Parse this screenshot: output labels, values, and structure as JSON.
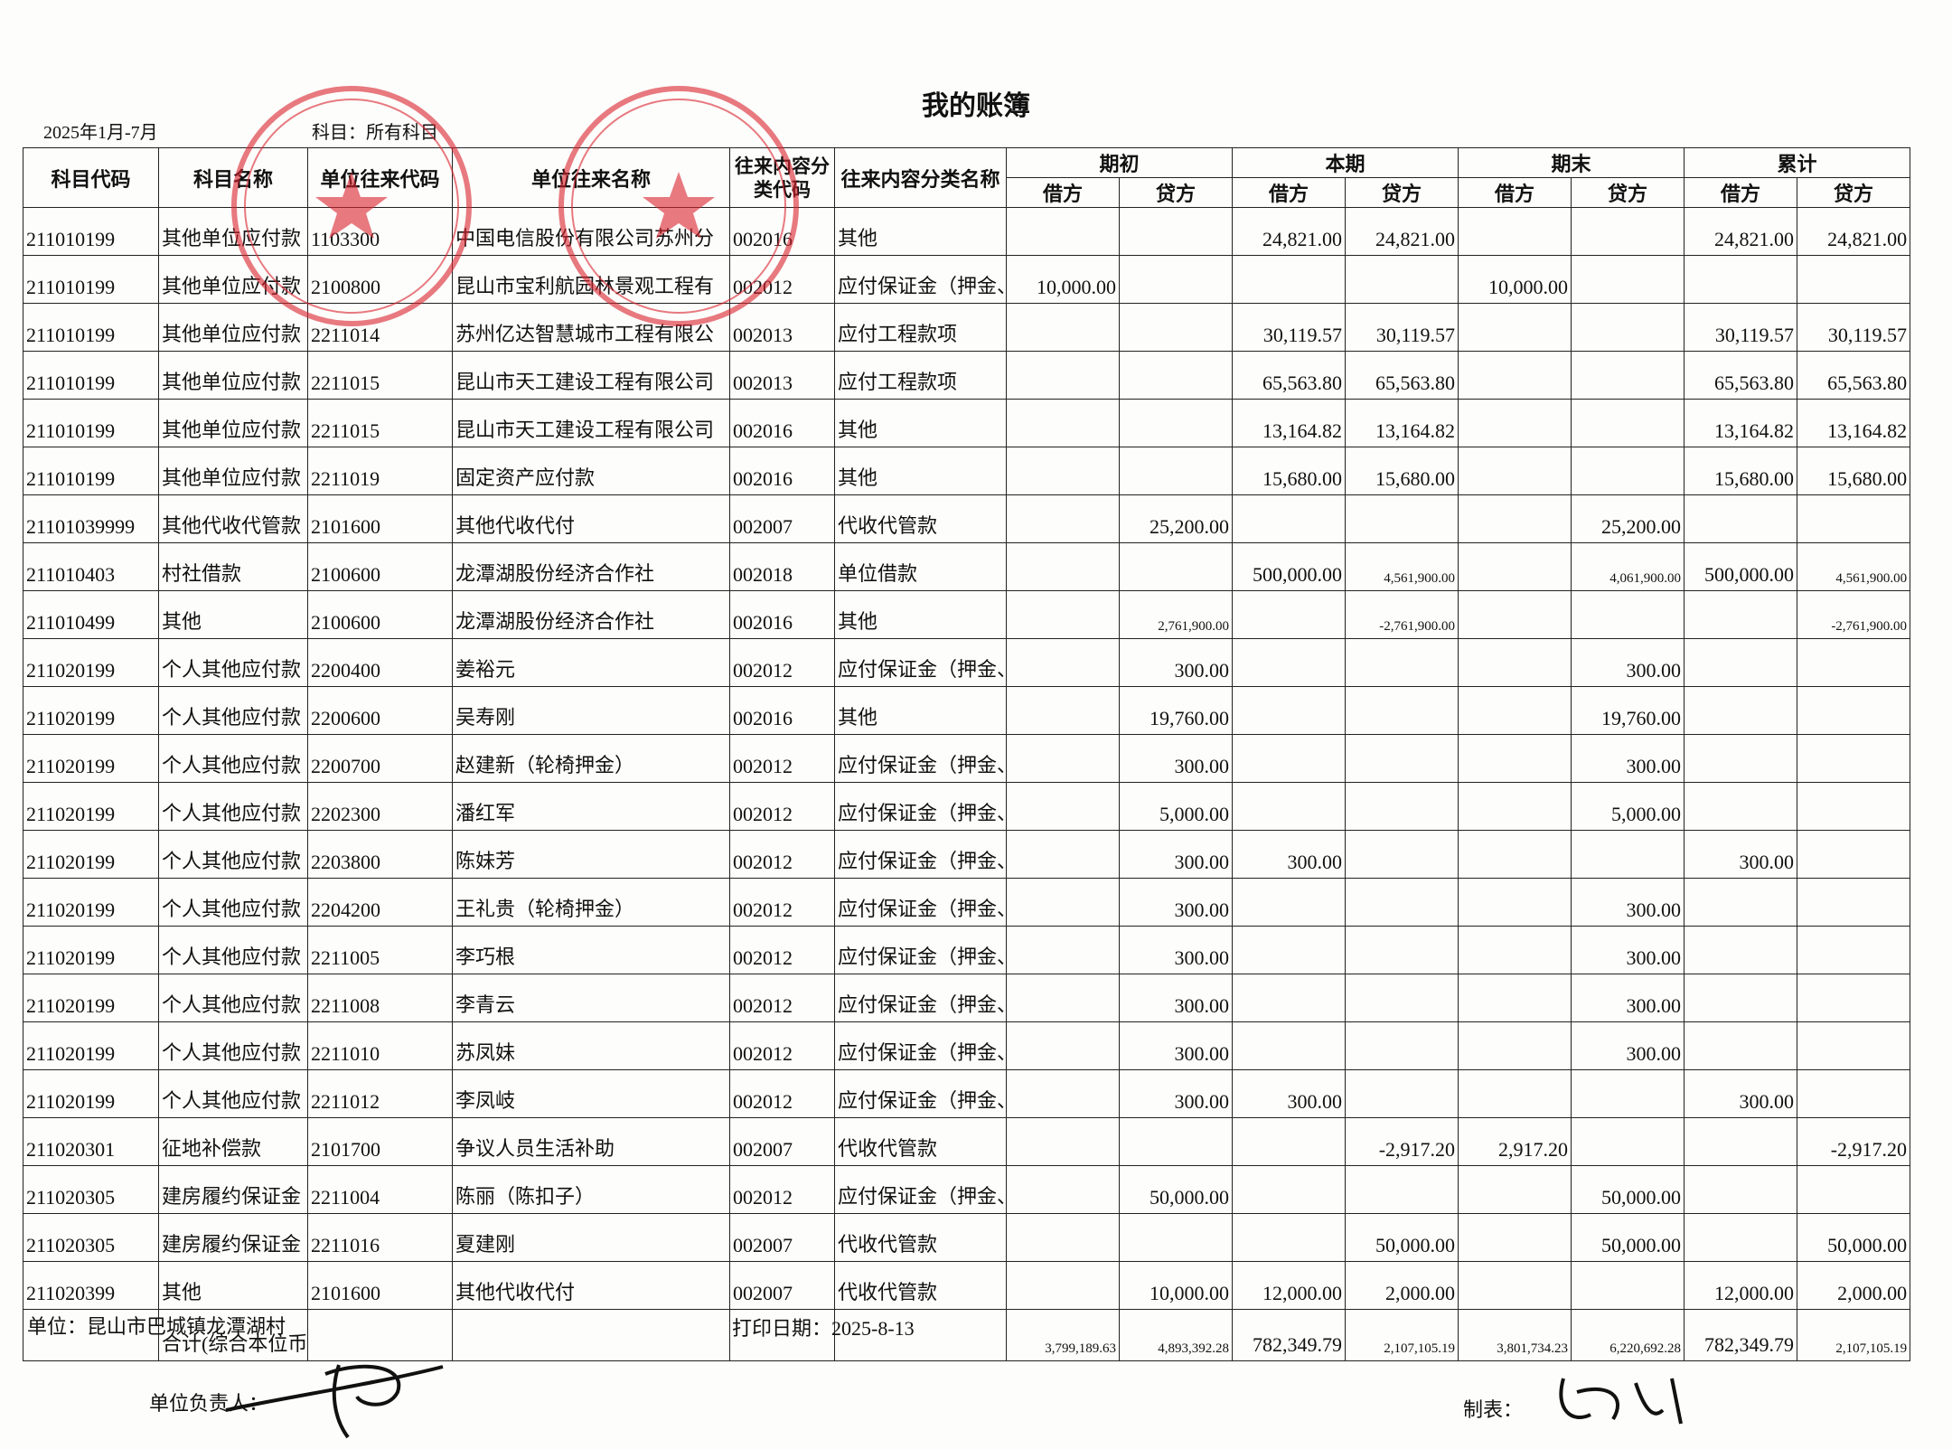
{
  "header": {
    "title": "我的账簿",
    "period": "2025年1月-7月",
    "subject": "科目：所有科目"
  },
  "table": {
    "columns": [
      "科目代码",
      "科目名称",
      "单位往来代码",
      "单位往来名称",
      "往来内容分类代码",
      "往来内容分类名称"
    ],
    "groups": [
      "期初",
      "本期",
      "期末",
      "累计"
    ],
    "sub_columns": [
      "借方",
      "贷方"
    ],
    "rows": [
      [
        "211010199",
        "其他单位应付款",
        "1103300",
        "中国电信股份有限公司苏州分",
        "002016",
        "其他",
        null,
        null,
        "24,821.00",
        "24,821.00",
        null,
        null,
        "24,821.00",
        "24,821.00"
      ],
      [
        "211010199",
        "其他单位应付款",
        "2100800",
        "昆山市宝利航园林景观工程有",
        "002012",
        "应付保证金（押金、履约金）",
        "10,000.00",
        null,
        null,
        null,
        "10,000.00",
        null,
        null,
        null
      ],
      [
        "211010199",
        "其他单位应付款",
        "2211014",
        "苏州亿达智慧城市工程有限公",
        "002013",
        "应付工程款项",
        null,
        null,
        "30,119.57",
        "30,119.57",
        null,
        null,
        "30,119.57",
        "30,119.57"
      ],
      [
        "211010199",
        "其他单位应付款",
        "2211015",
        "昆山市天工建设工程有限公司",
        "002013",
        "应付工程款项",
        null,
        null,
        "65,563.80",
        "65,563.80",
        null,
        null,
        "65,563.80",
        "65,563.80"
      ],
      [
        "211010199",
        "其他单位应付款",
        "2211015",
        "昆山市天工建设工程有限公司",
        "002016",
        "其他",
        null,
        null,
        "13,164.82",
        "13,164.82",
        null,
        null,
        "13,164.82",
        "13,164.82"
      ],
      [
        "211010199",
        "其他单位应付款",
        "2211019",
        "固定资产应付款",
        "002016",
        "其他",
        null,
        null,
        "15,680.00",
        "15,680.00",
        null,
        null,
        "15,680.00",
        "15,680.00"
      ],
      [
        "21101039999",
        "其他代收代管款",
        "2101600",
        "其他代收代付",
        "002007",
        "代收代管款",
        null,
        "25,200.00",
        null,
        null,
        null,
        "25,200.00",
        null,
        null
      ],
      [
        "211010403",
        "村社借款",
        "2100600",
        "龙潭湖股份经济合作社",
        "002018",
        "单位借款",
        null,
        null,
        "500,000.00",
        "4,561,900.00",
        null,
        "4,061,900.00",
        "500,000.00",
        "4,561,900.00"
      ],
      [
        "211010499",
        "其他",
        "2100600",
        "龙潭湖股份经济合作社",
        "002016",
        "其他",
        null,
        "2,761,900.00",
        null,
        "-2,761,900.00",
        null,
        null,
        null,
        "-2,761,900.00"
      ],
      [
        "211020199",
        "个人其他应付款",
        "2200400",
        "姜裕元",
        "002012",
        "应付保证金（押金、履约金）",
        null,
        "300.00",
        null,
        null,
        null,
        "300.00",
        null,
        null
      ],
      [
        "211020199",
        "个人其他应付款",
        "2200600",
        "吴寿刚",
        "002016",
        "其他",
        null,
        "19,760.00",
        null,
        null,
        null,
        "19,760.00",
        null,
        null
      ],
      [
        "211020199",
        "个人其他应付款",
        "2200700",
        "赵建新（轮椅押金）",
        "002012",
        "应付保证金（押金、履约金）",
        null,
        "300.00",
        null,
        null,
        null,
        "300.00",
        null,
        null
      ],
      [
        "211020199",
        "个人其他应付款",
        "2202300",
        "潘红军",
        "002012",
        "应付保证金（押金、履约金）",
        null,
        "5,000.00",
        null,
        null,
        null,
        "5,000.00",
        null,
        null
      ],
      [
        "211020199",
        "个人其他应付款",
        "2203800",
        "陈妹芳",
        "002012",
        "应付保证金（押金、履约金）",
        null,
        "300.00",
        "300.00",
        null,
        null,
        null,
        "300.00",
        null
      ],
      [
        "211020199",
        "个人其他应付款",
        "2204200",
        "王礼贵（轮椅押金）",
        "002012",
        "应付保证金（押金、履约金）",
        null,
        "300.00",
        null,
        null,
        null,
        "300.00",
        null,
        null
      ],
      [
        "211020199",
        "个人其他应付款",
        "2211005",
        "李巧根",
        "002012",
        "应付保证金（押金、履约金）",
        null,
        "300.00",
        null,
        null,
        null,
        "300.00",
        null,
        null
      ],
      [
        "211020199",
        "个人其他应付款",
        "2211008",
        "李青云",
        "002012",
        "应付保证金（押金、履约金）",
        null,
        "300.00",
        null,
        null,
        null,
        "300.00",
        null,
        null
      ],
      [
        "211020199",
        "个人其他应付款",
        "2211010",
        "苏凤妹",
        "002012",
        "应付保证金（押金、履约金）",
        null,
        "300.00",
        null,
        null,
        null,
        "300.00",
        null,
        null
      ],
      [
        "211020199",
        "个人其他应付款",
        "2211012",
        "李凤岐",
        "002012",
        "应付保证金（押金、履约金）",
        null,
        "300.00",
        "300.00",
        null,
        null,
        null,
        "300.00",
        null
      ],
      [
        "211020301",
        "征地补偿款",
        "2101700",
        "争议人员生活补助",
        "002007",
        "代收代管款",
        null,
        null,
        null,
        "-2,917.20",
        "2,917.20",
        null,
        null,
        "-2,917.20"
      ],
      [
        "211020305",
        "建房履约保证金",
        "2211004",
        "陈丽（陈扣子）",
        "002012",
        "应付保证金（押金、履约金）",
        null,
        "50,000.00",
        null,
        null,
        null,
        "50,000.00",
        null,
        null
      ],
      [
        "211020305",
        "建房履约保证金",
        "2211016",
        "夏建刚",
        "002007",
        "代收代管款",
        null,
        null,
        null,
        "50,000.00",
        null,
        "50,000.00",
        null,
        "50,000.00"
      ],
      [
        "211020399",
        "其他",
        "2101600",
        "其他代收代付",
        "002007",
        "代收代管款",
        null,
        "10,000.00",
        "12,000.00",
        "2,000.00",
        null,
        null,
        "12,000.00",
        "2,000.00"
      ]
    ],
    "total": {
      "label": "合计(综合本位币",
      "values": [
        "3,799,189.63",
        "4,893,392.28",
        "782,349.79",
        "2,107,105.19",
        "3,801,734.23",
        "6,220,692.28",
        "782,349.79",
        "2,107,105.19"
      ]
    }
  },
  "footer": {
    "unit": "单位：昆山市巴城镇龙潭湖村",
    "print_date": "打印日期：2025-8-13",
    "responsible": "单位负责人：",
    "preparer": "制表："
  }
}
